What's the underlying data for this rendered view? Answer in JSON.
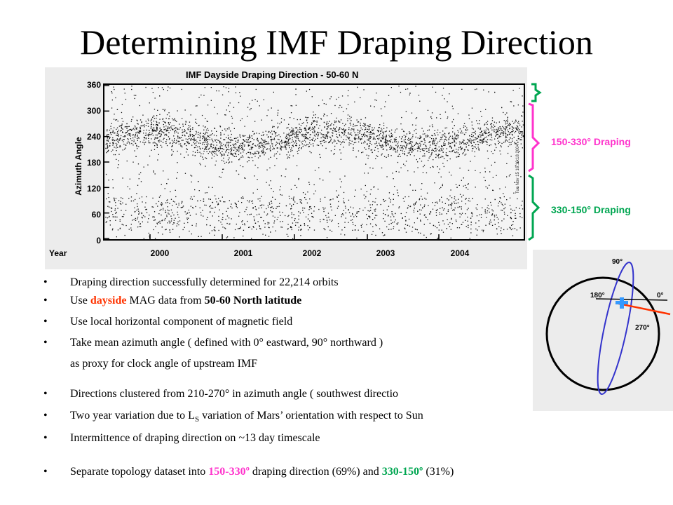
{
  "title": "Determining IMF Draping Direction",
  "plot": {
    "title": "IMF Dayside Draping Direction   -  50-60 N",
    "y_axis_label": "Azimuth Angle",
    "x_axis_label": "Year",
    "y_ticks": [
      "360",
      "300",
      "240",
      "180",
      "120",
      "60",
      "0"
    ],
    "x_ticks": [
      "2000",
      "2001",
      "2002",
      "2003",
      "2004"
    ]
  },
  "brackets": {
    "upper_label": "150-330° Draping",
    "lower_label": "330-150° Draping",
    "upper_color": "#ff33cc",
    "lower_color": "#00a651"
  },
  "diagram": {
    "labels": {
      "deg90": "90°",
      "deg180": "180°",
      "deg0": "0°",
      "deg270": "270°"
    },
    "ellipse_color": "#3333cc",
    "line_color": "#ff3300",
    "marker_color": "#3399ff"
  },
  "bullets": {
    "b1": "Draping direction successfully determined for 22,214 orbits",
    "b2_pre": "Use ",
    "b2_dayside": "dayside",
    "b2_mid": " MAG data from ",
    "b2_lat": "50-60 North latitude",
    "b3": "Use local horizontal component of magnetic field",
    "b4": "Take mean azimuth angle ( defined with 0° eastward, 90° northward )",
    "b4_cont": "as proxy for clock angle of upstream IMF",
    "b5": "Directions clustered from 210-270° in azimuth angle  ( southwest directio",
    "b6_pre": "Two year variation due to L",
    "b6_sub": "S",
    "b6_post": " variation of Mars’ orientation with respect to Sun",
    "b7": "Intermittence of draping direction on ~13 day timescale",
    "b8_pre": "Separate topology dataset into ",
    "b8_magenta": "150-330º",
    "b8_mid": " draping direction (69%) and ",
    "b8_green": "330-150º",
    "b8_post": " (31%)",
    "bullet_char": "•"
  }
}
